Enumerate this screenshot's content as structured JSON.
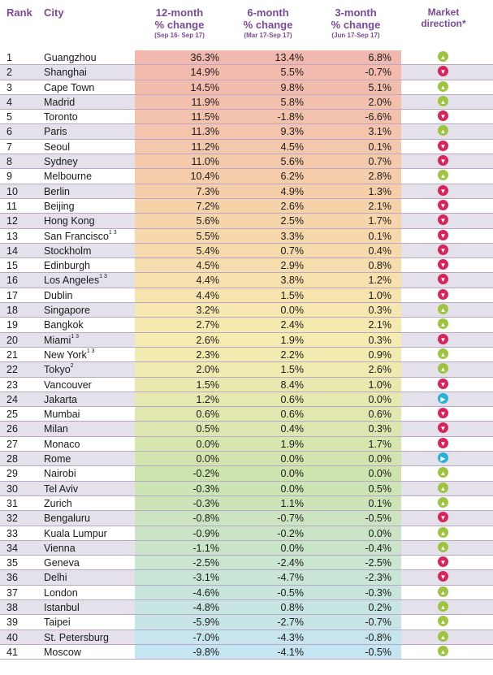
{
  "header": {
    "rank": "Rank",
    "city": "City",
    "col12": {
      "line1": "12-month",
      "line2": "% change",
      "sub": "(Sep 16- Sep 17)"
    },
    "col6": {
      "line1": "6-month",
      "line2": "% change",
      "sub": "(Mar 17-Sep 17)"
    },
    "col3": {
      "line1": "3-month",
      "line2": "% change",
      "sub": "(Jun 17-Sep 17)"
    },
    "direction": {
      "line1": "Market",
      "line2": "direction*"
    }
  },
  "colors": {
    "up": "#9cc43f",
    "down": "#d8245a",
    "flat": "#29b0d8",
    "gradient_top": "#f1b8ae",
    "gradient_mid": "#f6ecb0",
    "gradient_bottom": "#c5e5f2"
  },
  "rows": [
    {
      "rank": "1",
      "city": "Guangzhou",
      "sup": "",
      "m12": "36.3%",
      "m6": "13.4%",
      "m3": "6.8%",
      "dir": "up"
    },
    {
      "rank": "2",
      "city": "Shanghai",
      "sup": "",
      "m12": "14.9%",
      "m6": "5.5%",
      "m3": "-0.7%",
      "dir": "down"
    },
    {
      "rank": "3",
      "city": "Cape Town",
      "sup": "",
      "m12": "14.5%",
      "m6": "9.8%",
      "m3": "5.1%",
      "dir": "up"
    },
    {
      "rank": "4",
      "city": "Madrid",
      "sup": "",
      "m12": "11.9%",
      "m6": "5.8%",
      "m3": "2.0%",
      "dir": "up"
    },
    {
      "rank": "5",
      "city": "Toronto",
      "sup": "",
      "m12": "11.5%",
      "m6": "-1.8%",
      "m3": "-6.6%",
      "dir": "down"
    },
    {
      "rank": "6",
      "city": "Paris",
      "sup": "",
      "m12": "11.3%",
      "m6": "9.3%",
      "m3": "3.1%",
      "dir": "up"
    },
    {
      "rank": "7",
      "city": "Seoul",
      "sup": "",
      "m12": "11.2%",
      "m6": "4.5%",
      "m3": "0.1%",
      "dir": "down"
    },
    {
      "rank": "8",
      "city": "Sydney",
      "sup": "",
      "m12": "11.0%",
      "m6": "5.6%",
      "m3": "0.7%",
      "dir": "down"
    },
    {
      "rank": "9",
      "city": "Melbourne",
      "sup": "",
      "m12": "10.4%",
      "m6": "6.2%",
      "m3": "2.8%",
      "dir": "up"
    },
    {
      "rank": "10",
      "city": "Berlin",
      "sup": "",
      "m12": "7.3%",
      "m6": "4.9%",
      "m3": "1.3%",
      "dir": "down"
    },
    {
      "rank": "11",
      "city": "Beijing",
      "sup": "",
      "m12": "7.2%",
      "m6": "2.6%",
      "m3": "2.1%",
      "dir": "down"
    },
    {
      "rank": "12",
      "city": "Hong Kong",
      "sup": "",
      "m12": "5.6%",
      "m6": "2.5%",
      "m3": "1.7%",
      "dir": "down"
    },
    {
      "rank": "13",
      "city": "San Francisco",
      "sup": "1 3",
      "m12": "5.5%",
      "m6": "3.3%",
      "m3": "0.1%",
      "dir": "down"
    },
    {
      "rank": "14",
      "city": "Stockholm",
      "sup": "",
      "m12": "5.4%",
      "m6": "0.7%",
      "m3": "0.4%",
      "dir": "down"
    },
    {
      "rank": "15",
      "city": "Edinburgh",
      "sup": "",
      "m12": "4.5%",
      "m6": "2.9%",
      "m3": "0.8%",
      "dir": "down"
    },
    {
      "rank": "16",
      "city": "Los Angeles",
      "sup": "1 3",
      "m12": "4.4%",
      "m6": "3.8%",
      "m3": "1.2%",
      "dir": "down"
    },
    {
      "rank": "17",
      "city": "Dublin",
      "sup": "",
      "m12": "4.4%",
      "m6": "1.5%",
      "m3": "1.0%",
      "dir": "down"
    },
    {
      "rank": "18",
      "city": "Singapore",
      "sup": "",
      "m12": "3.2%",
      "m6": "0.0%",
      "m3": "0.3%",
      "dir": "up"
    },
    {
      "rank": "19",
      "city": "Bangkok",
      "sup": "",
      "m12": "2.7%",
      "m6": "2.4%",
      "m3": "2.1%",
      "dir": "up"
    },
    {
      "rank": "20",
      "city": "Miami",
      "sup": "1 3",
      "m12": "2.6%",
      "m6": "1.9%",
      "m3": "0.3%",
      "dir": "down"
    },
    {
      "rank": "21",
      "city": "New York",
      "sup": "1 3",
      "m12": "2.3%",
      "m6": "2.2%",
      "m3": "0.9%",
      "dir": "up"
    },
    {
      "rank": "22",
      "city": "Tokyo",
      "sup": "2",
      "m12": "2.0%",
      "m6": "1.5%",
      "m3": "2.6%",
      "dir": "up"
    },
    {
      "rank": "23",
      "city": "Vancouver",
      "sup": "",
      "m12": "1.5%",
      "m6": "8.4%",
      "m3": "1.0%",
      "dir": "down"
    },
    {
      "rank": "24",
      "city": "Jakarta",
      "sup": "",
      "m12": "1.2%",
      "m6": "0.6%",
      "m3": "0.0%",
      "dir": "flat"
    },
    {
      "rank": "25",
      "city": "Mumbai",
      "sup": "",
      "m12": "0.6%",
      "m6": "0.6%",
      "m3": "0.6%",
      "dir": "down"
    },
    {
      "rank": "26",
      "city": "Milan",
      "sup": "",
      "m12": "0.5%",
      "m6": "0.4%",
      "m3": "0.3%",
      "dir": "down"
    },
    {
      "rank": "27",
      "city": "Monaco",
      "sup": "",
      "m12": "0.0%",
      "m6": "1.9%",
      "m3": "1.7%",
      "dir": "down"
    },
    {
      "rank": "28",
      "city": "Rome",
      "sup": "",
      "m12": "0.0%",
      "m6": "0.0%",
      "m3": "0.0%",
      "dir": "flat"
    },
    {
      "rank": "29",
      "city": "Nairobi",
      "sup": "",
      "m12": "-0.2%",
      "m6": "0.0%",
      "m3": "0.0%",
      "dir": "up"
    },
    {
      "rank": "30",
      "city": "Tel Aviv",
      "sup": "",
      "m12": "-0.3%",
      "m6": "0.0%",
      "m3": "0.5%",
      "dir": "up"
    },
    {
      "rank": "31",
      "city": "Zurich",
      "sup": "",
      "m12": "-0.3%",
      "m6": "1.1%",
      "m3": "0.1%",
      "dir": "up"
    },
    {
      "rank": "32",
      "city": "Bengaluru",
      "sup": "",
      "m12": "-0.8%",
      "m6": "-0.7%",
      "m3": "-0.5%",
      "dir": "down"
    },
    {
      "rank": "33",
      "city": "Kuala Lumpur",
      "sup": "",
      "m12": "-0.9%",
      "m6": "-0.2%",
      "m3": "0.0%",
      "dir": "up"
    },
    {
      "rank": "34",
      "city": "Vienna",
      "sup": "",
      "m12": "-1.1%",
      "m6": "0.0%",
      "m3": "-0.4%",
      "dir": "up"
    },
    {
      "rank": "35",
      "city": "Geneva",
      "sup": "",
      "m12": "-2.5%",
      "m6": "-2.4%",
      "m3": "-2.5%",
      "dir": "down"
    },
    {
      "rank": "36",
      "city": "Delhi",
      "sup": "",
      "m12": "-3.1%",
      "m6": "-4.7%",
      "m3": "-2.3%",
      "dir": "down"
    },
    {
      "rank": "37",
      "city": "London",
      "sup": "",
      "m12": "-4.6%",
      "m6": "-0.5%",
      "m3": "-0.3%",
      "dir": "up"
    },
    {
      "rank": "38",
      "city": "Istanbul",
      "sup": "",
      "m12": "-4.8%",
      "m6": "0.8%",
      "m3": "0.2%",
      "dir": "up"
    },
    {
      "rank": "39",
      "city": "Taipei",
      "sup": "",
      "m12": "-5.9%",
      "m6": "-2.7%",
      "m3": "-0.7%",
      "dir": "up"
    },
    {
      "rank": "40",
      "city": "St. Petersburg",
      "sup": "",
      "m12": "-7.0%",
      "m6": "-4.3%",
      "m3": "-0.8%",
      "dir": "up"
    },
    {
      "rank": "41",
      "city": "Moscow",
      "sup": "",
      "m12": "-9.8%",
      "m6": "-4.1%",
      "m3": "-0.5%",
      "dir": "up"
    }
  ]
}
